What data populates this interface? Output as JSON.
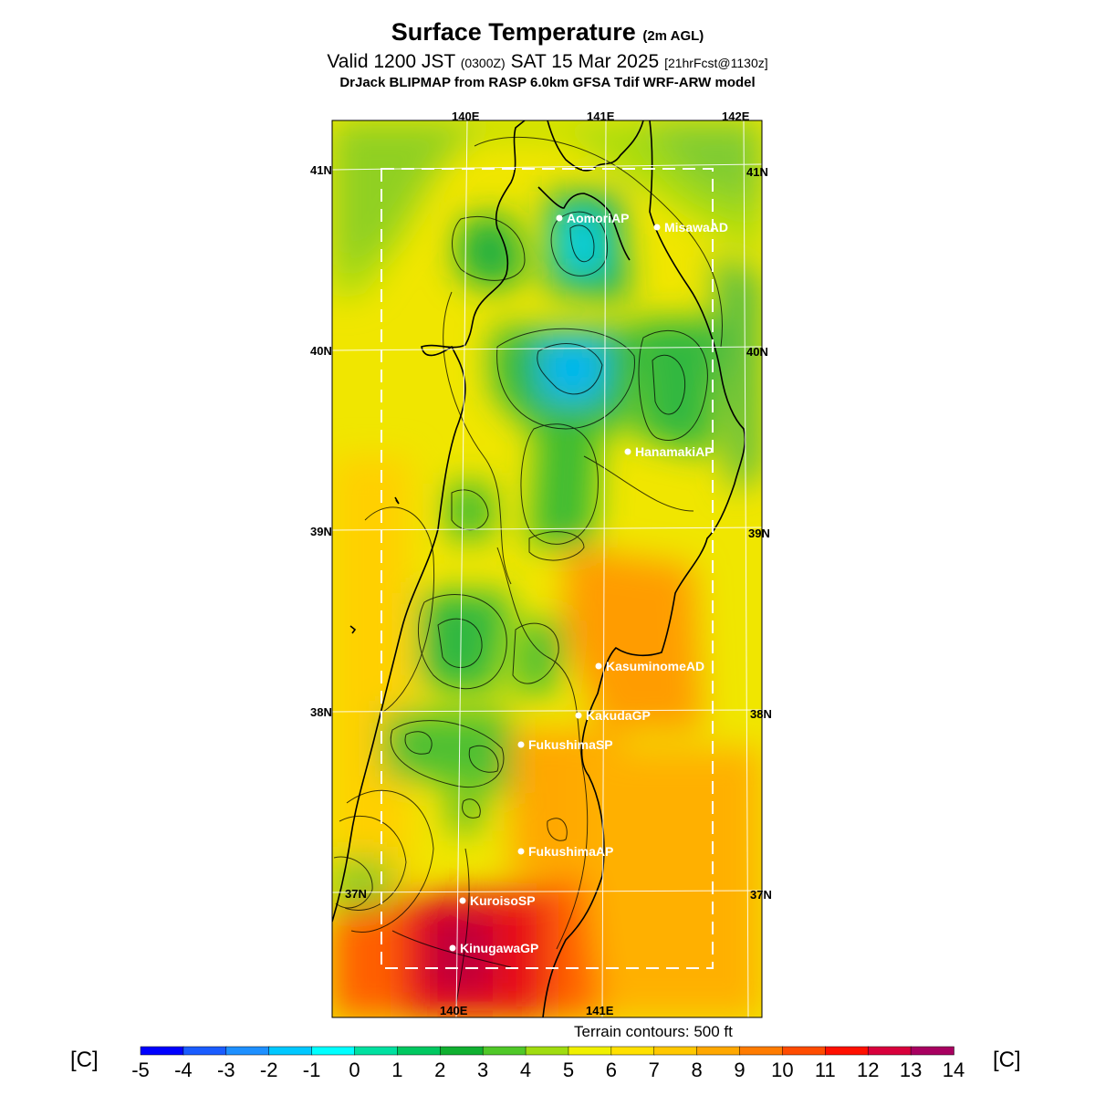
{
  "title": {
    "main": "Surface Temperature",
    "main_suffix": "(2m AGL)",
    "valid_prefix": "Valid 1200 JST",
    "valid_zulu": "(0300Z)",
    "valid_date": "SAT 15 Mar 2025",
    "forecast": "[21hrFcst@1130z]",
    "model": "DrJack BLIPMAP from RASP 6.0km GFSA Tdif WRF-ARW model"
  },
  "map": {
    "lon_labels_top": [
      "140E",
      "141E",
      "142E"
    ],
    "lon_labels_bottom": [
      "140E",
      "141E"
    ],
    "lat_labels_left": [
      "41N",
      "40N",
      "39N",
      "38N",
      "37N"
    ],
    "lat_labels_right": [
      "41N",
      "40N",
      "39N",
      "38N",
      "37N"
    ],
    "stations": [
      {
        "name": "AomoriAP"
      },
      {
        "name": "MisawaAD"
      },
      {
        "name": "HanamakiAP"
      },
      {
        "name": "KasuminomeAD"
      },
      {
        "name": "KakudaGP"
      },
      {
        "name": "FukushimaSP"
      },
      {
        "name": "FukushimaAP"
      },
      {
        "name": "KuroisoSP"
      },
      {
        "name": "KinugawaGP"
      }
    ]
  },
  "footer": {
    "terrain_note": "Terrain contours: 500 ft"
  },
  "colorbar": {
    "unit_left": "[C]",
    "unit_right": "[C]",
    "tick_labels": [
      "-5",
      "-4",
      "-3",
      "-2",
      "-1",
      "0",
      "1",
      "2",
      "3",
      "4",
      "5",
      "6",
      "7",
      "8",
      "9",
      "10",
      "11",
      "12",
      "13",
      "14"
    ],
    "colors": [
      "#0000ff",
      "#1a5cff",
      "#1e90ff",
      "#00c8ff",
      "#00ffff",
      "#00e0a0",
      "#00c860",
      "#10b030",
      "#50c828",
      "#a0dc10",
      "#f0f000",
      "#ffe000",
      "#ffc800",
      "#ffa800",
      "#ff7c00",
      "#ff4c00",
      "#ff1000",
      "#d8003c",
      "#a80060",
      "#800080"
    ]
  }
}
